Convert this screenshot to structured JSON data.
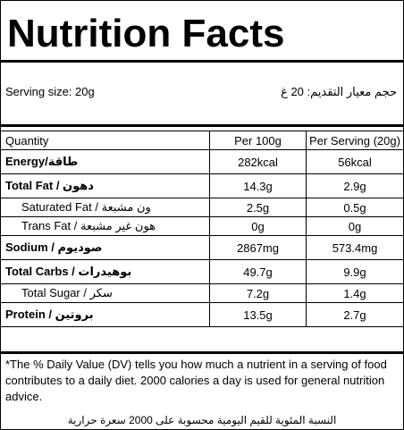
{
  "title": "Nutrition Facts",
  "serving": {
    "en": "Serving size: 20g",
    "ar": "حجم معيار التقديم: 20 غ"
  },
  "table": {
    "headers": [
      "Quantity",
      "Per 100g",
      "Per Serving (20g)"
    ],
    "rows": [
      {
        "en": "Energy",
        "sep": "/",
        "ar": "طاقة",
        "per100": "282kcal",
        "perServing": "56kcal"
      },
      {
        "en": "Total Fat",
        "sep": " / ",
        "ar": "دهون",
        "per100": "14.3g",
        "perServing": "2.9g"
      },
      {
        "en": "Saturated Fat",
        "sep": " / ",
        "ar": "ون مشبعة",
        "per100": "2.5g",
        "perServing": "0.5g"
      },
      {
        "en": "Trans Fat",
        "sep": " / ",
        "ar": "هون غير مشبعة",
        "per100": "0g",
        "perServing": "0g"
      },
      {
        "en": "Sodium",
        "sep": " / ",
        "ar": "صوديوم",
        "per100": "2867mg",
        "perServing": "573.4mg"
      },
      {
        "en": "Total Carbs",
        "sep": " / ",
        "ar": "بوهيدرات",
        "per100": "49.7g",
        "perServing": "9.9g"
      },
      {
        "en": "Total Sugar",
        "sep": " / ",
        "ar": "سكر",
        "per100": "7.2g",
        "perServing": "1.4g"
      },
      {
        "en": "Protein",
        "sep": " / ",
        "ar": "بروتين",
        "per100": "13.5g",
        "perServing": "2.7g"
      }
    ]
  },
  "footnote": {
    "en": "*The % Daily Value (DV) tells you how much a nutrient in a serving of food contributes to a daily diet. 2000 calories a day is used for general nutrition advice.",
    "ar": "النسبة المئوية للقيم اليومية محسوبة على 2000 سعرة حرارية"
  }
}
